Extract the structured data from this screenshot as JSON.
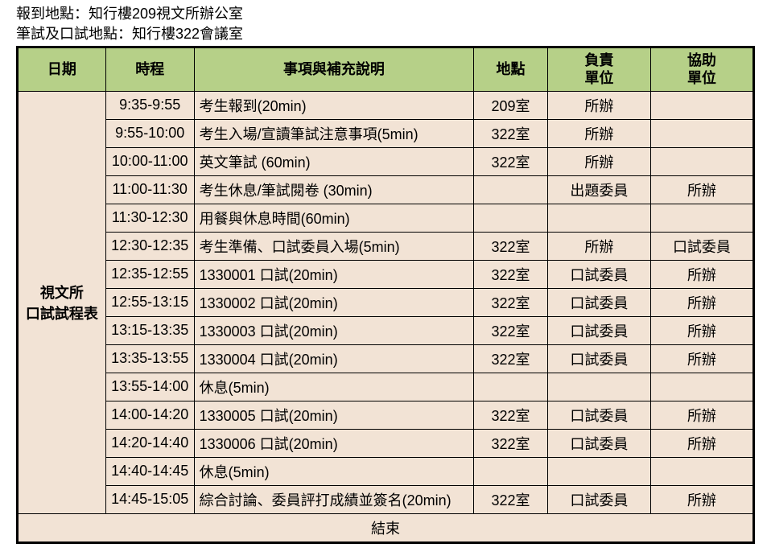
{
  "top": {
    "line1": "報到地點：知行樓209視文所辦公室",
    "line2": "筆試及口試地點：知行樓322會議室"
  },
  "headers": {
    "date": "日期",
    "time": "時程",
    "desc": "事項與補充說明",
    "loc": "地點",
    "resp1": "負責",
    "resp2": "單位",
    "help1": "協助",
    "help2": "單位"
  },
  "dateLabel1": "視文所",
  "dateLabel2": "口試試程表",
  "rows": [
    {
      "time": "9:35-9:55",
      "desc": "考生報到(20min)",
      "loc": "209室",
      "resp": "所辦",
      "help": ""
    },
    {
      "time": "9:55-10:00",
      "desc": "考生入場/宣讀筆試注意事項(5min)",
      "loc": "322室",
      "resp": "所辦",
      "help": ""
    },
    {
      "time": "10:00-11:00",
      "desc": "英文筆試 (60min)",
      "loc": "322室",
      "resp": "所辦",
      "help": ""
    },
    {
      "time": "11:00-11:30",
      "desc": "考生休息/筆試閱卷 (30min)",
      "loc": "",
      "resp": "出題委員",
      "help": "所辦"
    },
    {
      "time": "11:30-12:30",
      "desc": "用餐與休息時間(60min)",
      "loc": "",
      "resp": "",
      "help": ""
    },
    {
      "time": "12:30-12:35",
      "desc": "考生準備、口試委員入場(5min)",
      "loc": "322室",
      "resp": "所辦",
      "help": "口試委員"
    },
    {
      "time": "12:35-12:55",
      "desc": "1330001 口試(20min)",
      "loc": "322室",
      "resp": "口試委員",
      "help": "所辦"
    },
    {
      "time": "12:55-13:15",
      "desc": "1330002 口試(20min)",
      "loc": "322室",
      "resp": "口試委員",
      "help": "所辦"
    },
    {
      "time": "13:15-13:35",
      "desc": "1330003 口試(20min)",
      "loc": "322室",
      "resp": "口試委員",
      "help": "所辦"
    },
    {
      "time": "13:35-13:55",
      "desc": "1330004 口試(20min)",
      "loc": "322室",
      "resp": "口試委員",
      "help": "所辦"
    },
    {
      "time": "13:55-14:00",
      "desc": "休息(5min)",
      "loc": "",
      "resp": "",
      "help": ""
    },
    {
      "time": "14:00-14:20",
      "desc": "1330005 口試(20min)",
      "loc": "322室",
      "resp": "口試委員",
      "help": "所辦"
    },
    {
      "time": "14:20-14:40",
      "desc": "1330006 口試(20min)",
      "loc": "322室",
      "resp": "口試委員",
      "help": "所辦"
    },
    {
      "time": "14:40-14:45",
      "desc": "休息(5min)",
      "loc": "",
      "resp": "",
      "help": ""
    },
    {
      "time": "14:45-15:05",
      "desc": "綜合討論、委員評打成績並簽名(20min)",
      "loc": "322室",
      "resp": "口試委員",
      "help": "所辦"
    }
  ],
  "endLabel": "結束",
  "style": {
    "header_bg": "#b6d088",
    "cell_bg": "#f2e3d5",
    "border": "#000000",
    "font_size": 18
  }
}
